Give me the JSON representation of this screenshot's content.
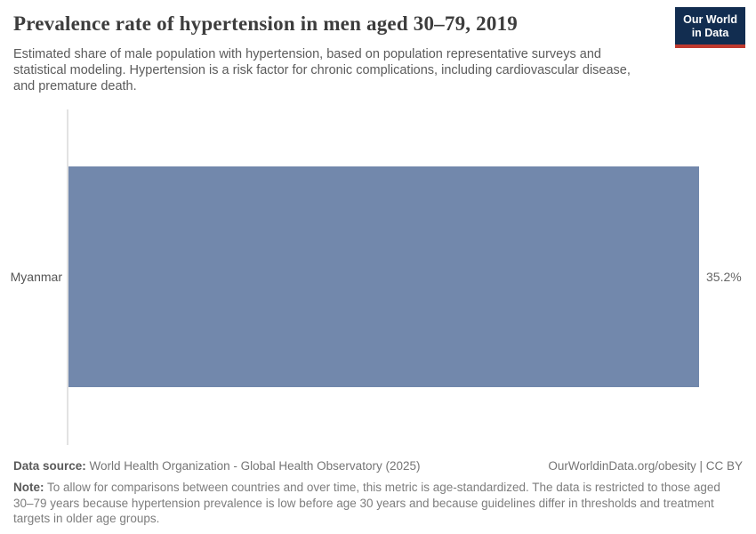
{
  "header": {
    "title": "Prevalence rate of hypertension in men aged 30–79, 2019",
    "subtitle": "Estimated share of male population with hypertension, based on population representative surveys and statistical modeling. Hypertension is a risk factor for chronic complications, including cardiovascular disease, and premature death.",
    "logo": {
      "line1": "Our World",
      "line2": "in Data",
      "bg_color": "#122d50",
      "accent_color": "#bf392e"
    }
  },
  "chart_data": {
    "type": "bar",
    "orientation": "horizontal",
    "title": "Prevalence rate of hypertension in men aged 30–79, 2019",
    "categories": [
      "Myanmar"
    ],
    "values": [
      35.2
    ],
    "value_labels": [
      "35.2%"
    ],
    "unit": "%",
    "xlim": [
      0,
      35.2
    ],
    "grid": false,
    "legend": false,
    "bar_color": "#7288ac",
    "axis_line_color": "#e2e2e2"
  },
  "footer": {
    "source_label": "Data source:",
    "source_text": "World Health Organization - Global Health Observatory (2025)",
    "attribution": "OurWorldinData.org/obesity | CC BY",
    "note_label": "Note:",
    "note_text": "To allow for comparisons between countries and over time, this metric is age-standardized. The data is restricted to those aged 30–79 years because hypertension prevalence is low before age 30 years and because guidelines differ in thresholds and treatment targets in older age groups."
  }
}
